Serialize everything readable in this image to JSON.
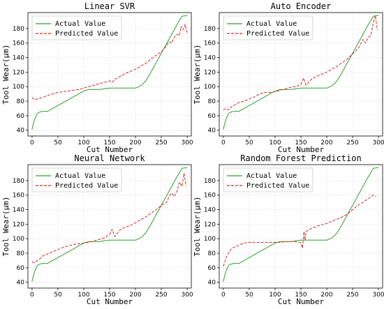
{
  "chart_data": [
    {
      "type": "line",
      "title": "Linear SVR",
      "xlabel": "Cut Number",
      "ylabel": "Tool Wear(μm)",
      "xlim": [
        -8,
        308
      ],
      "ylim": [
        32,
        202
      ],
      "xticks": [
        0,
        50,
        100,
        150,
        200,
        250,
        300
      ],
      "yticks": [
        40,
        60,
        80,
        100,
        120,
        140,
        160,
        180
      ],
      "grid": true,
      "legend": "top-left",
      "series": [
        {
          "name": "Actual Value",
          "color": "#2ca02c",
          "style": "solid",
          "x": [
            0,
            3,
            6,
            10,
            15,
            20,
            25,
            30,
            40,
            50,
            60,
            70,
            80,
            90,
            100,
            110,
            120,
            130,
            140,
            150,
            160,
            170,
            180,
            190,
            200,
            210,
            220,
            230,
            240,
            250,
            260,
            270,
            280,
            290,
            300
          ],
          "y": [
            41,
            50,
            57,
            63,
            65,
            66,
            66,
            66,
            70,
            74,
            78,
            82,
            86,
            90,
            94,
            96,
            96,
            96,
            97,
            98,
            98,
            98,
            98,
            98,
            98,
            101,
            108,
            120,
            133,
            146,
            159,
            172,
            185,
            197,
            198
          ]
        },
        {
          "name": "Predicted Value",
          "color": "#d62728",
          "style": "dashed",
          "x": [
            0,
            5,
            10,
            20,
            30,
            40,
            50,
            60,
            70,
            80,
            90,
            100,
            110,
            120,
            130,
            140,
            150,
            155,
            160,
            170,
            180,
            190,
            200,
            210,
            220,
            230,
            240,
            250,
            260,
            265,
            270,
            275,
            280,
            285,
            288,
            292,
            296,
            300
          ],
          "y": [
            85,
            82,
            83,
            85,
            88,
            90,
            92,
            93,
            94,
            95,
            96,
            98,
            100,
            102,
            104,
            106,
            108,
            106,
            110,
            114,
            118,
            121,
            124,
            128,
            132,
            138,
            143,
            148,
            156,
            162,
            160,
            168,
            172,
            170,
            183,
            178,
            186,
            172
          ]
        }
      ]
    },
    {
      "type": "line",
      "title": "Auto Encoder",
      "xlabel": "Cut Number",
      "ylabel": "Tool Wear(μm)",
      "xlim": [
        -8,
        308
      ],
      "ylim": [
        32,
        202
      ],
      "xticks": [
        0,
        50,
        100,
        150,
        200,
        250,
        300
      ],
      "yticks": [
        40,
        60,
        80,
        100,
        120,
        140,
        160,
        180
      ],
      "grid": true,
      "legend": "top-left",
      "series": [
        {
          "name": "Actual Value",
          "color": "#2ca02c",
          "style": "solid",
          "x": [
            0,
            3,
            6,
            10,
            15,
            20,
            25,
            30,
            40,
            50,
            60,
            70,
            80,
            90,
            100,
            110,
            120,
            130,
            140,
            150,
            160,
            170,
            180,
            190,
            200,
            210,
            220,
            230,
            240,
            250,
            260,
            270,
            280,
            290,
            300
          ],
          "y": [
            41,
            50,
            57,
            63,
            65,
            66,
            66,
            66,
            70,
            74,
            78,
            82,
            86,
            90,
            94,
            96,
            96,
            96,
            97,
            98,
            98,
            98,
            98,
            98,
            98,
            101,
            108,
            120,
            133,
            146,
            159,
            172,
            185,
            197,
            198
          ]
        },
        {
          "name": "Predicted Value",
          "color": "#d62728",
          "style": "dashed",
          "x": [
            0,
            5,
            10,
            15,
            20,
            30,
            40,
            50,
            60,
            70,
            80,
            90,
            100,
            110,
            120,
            130,
            140,
            150,
            155,
            160,
            170,
            180,
            190,
            200,
            210,
            220,
            230,
            240,
            250,
            260,
            265,
            270,
            275,
            280,
            285,
            290,
            294,
            298
          ],
          "y": [
            68,
            70,
            68,
            72,
            74,
            78,
            80,
            83,
            86,
            90,
            92,
            92,
            93,
            95,
            97,
            99,
            100,
            103,
            112,
            102,
            110,
            114,
            117,
            120,
            124,
            128,
            133,
            138,
            145,
            152,
            158,
            165,
            160,
            168,
            170,
            188,
            198,
            178
          ]
        }
      ]
    },
    {
      "type": "line",
      "title": "Neural Network",
      "xlabel": "Cut Number",
      "ylabel": "Tool Wear(μm)",
      "xlim": [
        -8,
        308
      ],
      "ylim": [
        32,
        202
      ],
      "xticks": [
        0,
        50,
        100,
        150,
        200,
        250,
        300
      ],
      "yticks": [
        40,
        60,
        80,
        100,
        120,
        140,
        160,
        180
      ],
      "grid": true,
      "legend": "top-left",
      "series": [
        {
          "name": "Actual Value",
          "color": "#2ca02c",
          "style": "solid",
          "x": [
            0,
            3,
            6,
            10,
            15,
            20,
            25,
            30,
            40,
            50,
            60,
            70,
            80,
            90,
            100,
            110,
            120,
            130,
            140,
            150,
            160,
            170,
            180,
            190,
            200,
            210,
            220,
            230,
            240,
            250,
            260,
            270,
            280,
            290,
            300
          ],
          "y": [
            41,
            50,
            57,
            63,
            65,
            66,
            66,
            66,
            70,
            74,
            78,
            82,
            86,
            90,
            94,
            96,
            96,
            96,
            97,
            98,
            98,
            98,
            98,
            98,
            98,
            101,
            108,
            120,
            133,
            146,
            159,
            172,
            185,
            197,
            198
          ]
        },
        {
          "name": "Predicted Value",
          "color": "#d62728",
          "style": "dashed",
          "x": [
            0,
            5,
            10,
            15,
            20,
            30,
            40,
            50,
            60,
            70,
            80,
            90,
            100,
            110,
            120,
            130,
            140,
            150,
            155,
            160,
            170,
            180,
            190,
            200,
            210,
            220,
            230,
            240,
            250,
            260,
            265,
            270,
            275,
            280,
            285,
            290,
            294,
            298
          ],
          "y": [
            68,
            67,
            70,
            72,
            76,
            79,
            82,
            85,
            88,
            90,
            92,
            93,
            94,
            95,
            97,
            99,
            101,
            106,
            113,
            103,
            112,
            116,
            118,
            122,
            126,
            130,
            135,
            140,
            146,
            150,
            158,
            163,
            158,
            165,
            178,
            172,
            190,
            172
          ]
        }
      ]
    },
    {
      "type": "line",
      "title": "Random Forest Prediction",
      "xlabel": "Cut Number",
      "ylabel": "Tool Wear(μm)",
      "xlim": [
        -8,
        308
      ],
      "ylim": [
        32,
        202
      ],
      "xticks": [
        0,
        50,
        100,
        150,
        200,
        250,
        300
      ],
      "yticks": [
        40,
        60,
        80,
        100,
        120,
        140,
        160,
        180
      ],
      "grid": true,
      "legend": "top-left",
      "series": [
        {
          "name": "Actual Value",
          "color": "#2ca02c",
          "style": "solid",
          "x": [
            0,
            3,
            6,
            10,
            15,
            20,
            25,
            30,
            40,
            50,
            60,
            70,
            80,
            90,
            100,
            110,
            120,
            130,
            140,
            150,
            160,
            170,
            180,
            190,
            200,
            210,
            220,
            230,
            240,
            250,
            260,
            270,
            280,
            290,
            300
          ],
          "y": [
            41,
            50,
            57,
            63,
            65,
            66,
            66,
            66,
            70,
            74,
            78,
            82,
            86,
            90,
            94,
            96,
            96,
            96,
            97,
            98,
            98,
            98,
            98,
            98,
            98,
            101,
            108,
            120,
            133,
            146,
            159,
            172,
            185,
            197,
            198
          ]
        },
        {
          "name": "Predicted Value",
          "color": "#d62728",
          "style": "dashed",
          "x": [
            0,
            3,
            6,
            10,
            15,
            20,
            30,
            40,
            50,
            60,
            70,
            80,
            90,
            100,
            110,
            120,
            130,
            140,
            150,
            153,
            156,
            158,
            160,
            170,
            180,
            190,
            200,
            210,
            220,
            230,
            240,
            250,
            260,
            270,
            280,
            290,
            295
          ],
          "y": [
            62,
            68,
            75,
            80,
            86,
            88,
            91,
            94,
            95,
            95,
            95,
            95,
            95,
            95,
            95,
            96,
            96,
            96,
            94,
            87,
            110,
            98,
            110,
            114,
            117,
            119,
            121,
            124,
            127,
            130,
            134,
            140,
            146,
            150,
            155,
            160,
            158
          ]
        }
      ]
    }
  ]
}
